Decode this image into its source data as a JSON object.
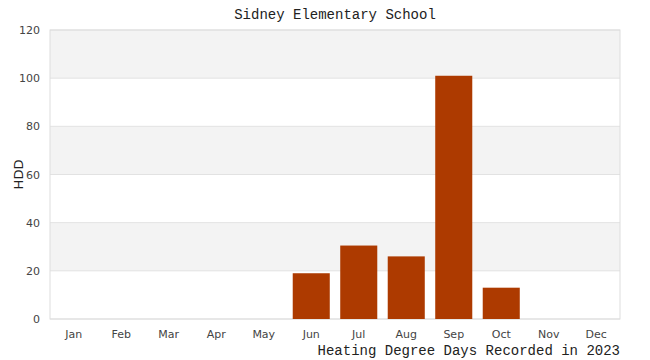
{
  "chart_data": {
    "type": "bar",
    "title": "Sidney Elementary School",
    "xlabel": "Heating Degree Days Recorded in 2023",
    "ylabel": "HDD",
    "categories": [
      "Jan",
      "Feb",
      "Mar",
      "Apr",
      "May",
      "Jun",
      "Jul",
      "Aug",
      "Sep",
      "Oct",
      "Nov",
      "Dec"
    ],
    "values": [
      0,
      0,
      0,
      0,
      0,
      19,
      30.5,
      26,
      101,
      13,
      0,
      0
    ],
    "color": "#ad3a00",
    "ylim": [
      0,
      120
    ],
    "yticks": [
      0,
      20,
      40,
      60,
      80,
      100,
      120
    ],
    "grid": true
  }
}
